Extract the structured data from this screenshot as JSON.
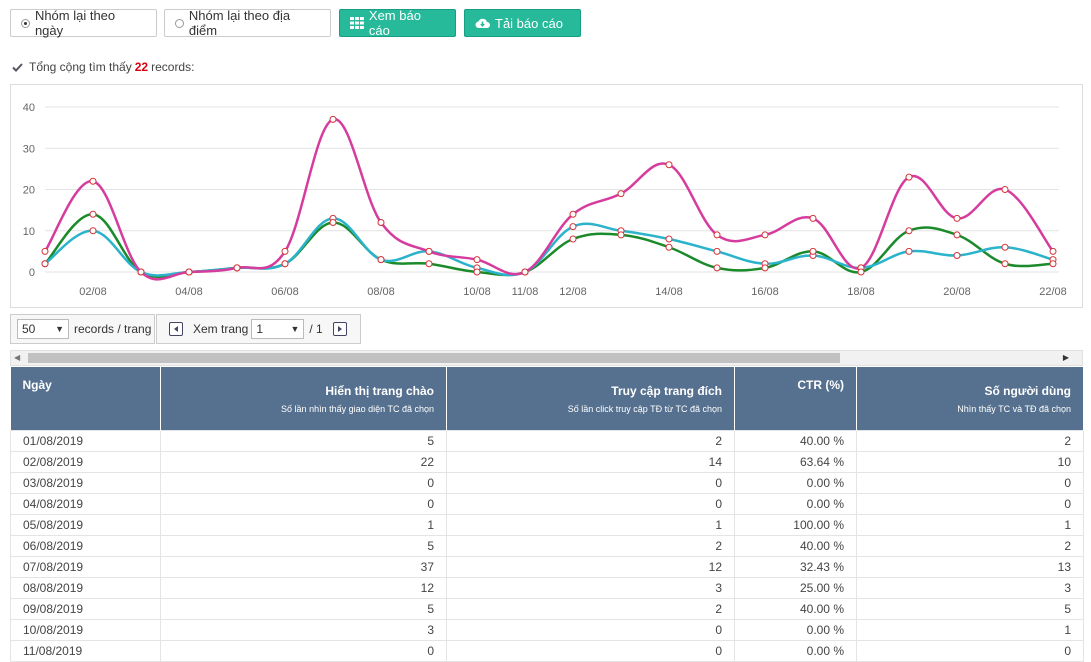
{
  "toolbar": {
    "group_by_date": "Nhóm lại theo ngày",
    "group_by_location": "Nhóm lại theo địa điểm",
    "view_report": "Xem báo cáo",
    "download_report": "Tải báo cáo"
  },
  "summary": {
    "prefix": "Tổng cộng tìm thấy",
    "count": "22",
    "suffix": "records:"
  },
  "chart_data": {
    "type": "line",
    "x": [
      "01/08",
      "02/08",
      "03/08",
      "04/08",
      "05/08",
      "06/08",
      "07/08",
      "08/08",
      "09/08",
      "10/08",
      "11/08",
      "12/08",
      "13/08",
      "14/08",
      "15/08",
      "16/08",
      "17/08",
      "18/08",
      "19/08",
      "20/08",
      "21/08",
      "22/08"
    ],
    "x_tick_labels": [
      "02/08",
      "04/08",
      "06/08",
      "08/08",
      "10/08",
      "11/08",
      "12/08",
      "14/08",
      "16/08",
      "18/08",
      "20/08",
      "22/08"
    ],
    "ylim": [
      0,
      40
    ],
    "y_ticks": [
      "0",
      "10",
      "20",
      "30",
      "40"
    ],
    "grid": true,
    "series": [
      {
        "color": "#d63b9e",
        "values": [
          5,
          22,
          0,
          0,
          1,
          5,
          37,
          12,
          5,
          3,
          0,
          14,
          19,
          26,
          9,
          9,
          13,
          1,
          23,
          13,
          20,
          5
        ]
      },
      {
        "color": "#2bb3cc",
        "values": [
          2,
          10,
          0,
          0,
          1,
          2,
          13,
          3,
          5,
          1,
          0,
          11,
          10,
          8,
          5,
          2,
          4,
          1,
          5,
          4,
          6,
          3
        ]
      },
      {
        "color": "#1a8a2a",
        "values": [
          2,
          14,
          0,
          0,
          1,
          2,
          12,
          3,
          2,
          0,
          0,
          8,
          9,
          6,
          1,
          1,
          5,
          0,
          10,
          9,
          2,
          2
        ]
      }
    ]
  },
  "pager": {
    "page_size": "50",
    "records_per_page": "records / trang",
    "view_page": "Xem trang",
    "page": "1",
    "total": "/ 1"
  },
  "table": {
    "headers": [
      {
        "title": "Ngày",
        "sub": ""
      },
      {
        "title": "Hiển thị trang chào",
        "sub": "Số lần nhìn thấy giao diện TC đã chọn"
      },
      {
        "title": "Truy cập trang đích",
        "sub": "Số lần click truy cập TĐ từ TC đã chọn"
      },
      {
        "title": "CTR (%)",
        "sub": ""
      },
      {
        "title": "Số người dùng",
        "sub": "Nhìn thấy TC và TĐ đã chọn"
      }
    ],
    "rows": [
      [
        "01/08/2019",
        "5",
        "2",
        "40.00 %",
        "2"
      ],
      [
        "02/08/2019",
        "22",
        "14",
        "63.64 %",
        "10"
      ],
      [
        "03/08/2019",
        "0",
        "0",
        "0.00 %",
        "0"
      ],
      [
        "04/08/2019",
        "0",
        "0",
        "0.00 %",
        "0"
      ],
      [
        "05/08/2019",
        "1",
        "1",
        "100.00 %",
        "1"
      ],
      [
        "06/08/2019",
        "5",
        "2",
        "40.00 %",
        "2"
      ],
      [
        "07/08/2019",
        "37",
        "12",
        "32.43 %",
        "13"
      ],
      [
        "08/08/2019",
        "12",
        "3",
        "25.00 %",
        "3"
      ],
      [
        "09/08/2019",
        "5",
        "2",
        "40.00 %",
        "5"
      ],
      [
        "10/08/2019",
        "3",
        "0",
        "0.00 %",
        "1"
      ],
      [
        "11/08/2019",
        "0",
        "0",
        "0.00 %",
        "0"
      ]
    ]
  }
}
